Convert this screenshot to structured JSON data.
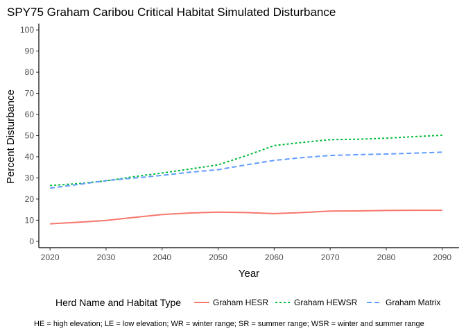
{
  "chart_data": {
    "type": "line",
    "title": "SPY75 Graham Caribou Critical Habitat Simulated Disturbance",
    "xlabel": "Year",
    "ylabel": "Percent Disturbance",
    "xlim": [
      2018,
      2093
    ],
    "ylim": [
      -3,
      103
    ],
    "x_ticks": [
      2020,
      2030,
      2040,
      2050,
      2060,
      2070,
      2080,
      2090
    ],
    "y_ticks": [
      0,
      10,
      20,
      30,
      40,
      50,
      60,
      70,
      80,
      90,
      100
    ],
    "grid": false,
    "legend_position": "bottom",
    "legend_title": "Herd Name and Habitat Type",
    "caption": "HE = high elevation; LE = low elevation; WR  = winter range; SR = summer range; WSR = winter and summer range",
    "series": [
      {
        "name": "Graham HESR",
        "color": "#F8766D",
        "dash": "solid",
        "x": [
          2020,
          2025,
          2030,
          2035,
          2040,
          2045,
          2050,
          2055,
          2060,
          2065,
          2070,
          2075,
          2080,
          2085,
          2090
        ],
        "y": [
          8.3,
          9.0,
          9.9,
          11.3,
          12.7,
          13.4,
          13.8,
          13.6,
          13.1,
          13.6,
          14.3,
          14.4,
          14.6,
          14.7,
          14.7
        ]
      },
      {
        "name": "Graham HEWSR",
        "color": "#00BA38",
        "dash": "dotted",
        "x": [
          2020,
          2025,
          2030,
          2035,
          2040,
          2045,
          2050,
          2055,
          2060,
          2065,
          2070,
          2075,
          2080,
          2085,
          2090
        ],
        "y": [
          26.4,
          27.3,
          28.6,
          30.6,
          32.3,
          34.2,
          36.2,
          40.5,
          45.3,
          46.8,
          48.1,
          48.3,
          48.8,
          49.5,
          50.2
        ]
      },
      {
        "name": "Graham Matrix",
        "color": "#619CFF",
        "dash": "dashed",
        "x": [
          2020,
          2025,
          2030,
          2035,
          2040,
          2045,
          2050,
          2055,
          2060,
          2065,
          2070,
          2075,
          2080,
          2085,
          2090
        ],
        "y": [
          25.2,
          26.9,
          28.7,
          29.9,
          31.2,
          32.7,
          33.9,
          36.2,
          38.3,
          39.6,
          40.6,
          41.0,
          41.3,
          41.7,
          42.2
        ]
      }
    ]
  }
}
